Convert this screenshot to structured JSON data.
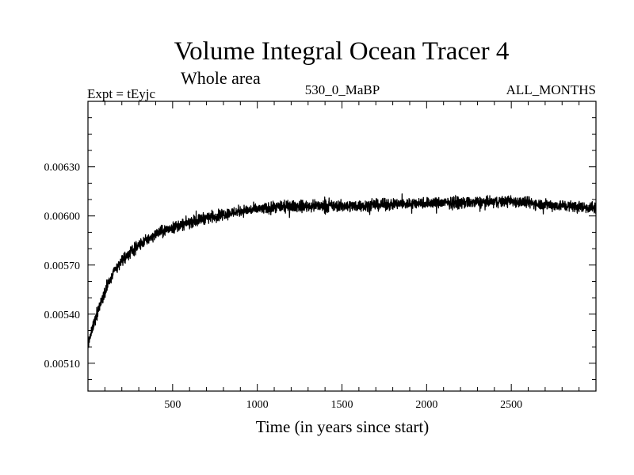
{
  "chart_data": {
    "type": "line",
    "title": "Volume Integral Ocean Tracer 4",
    "subtitle": "Whole area",
    "experiment_label": "Expt = tEyjc",
    "period_label": "530_0_MaBP",
    "months_label": "ALL_MONTHS",
    "xlabel": "Time (in years since start)",
    "ylabel": "",
    "xlim": [
      0,
      3000
    ],
    "ylim": [
      0.00493,
      0.0067
    ],
    "x_ticks": [
      500,
      1000,
      1500,
      2000,
      2500
    ],
    "x_tick_labels": [
      "500",
      "1000",
      "1500",
      "2000",
      "2500"
    ],
    "y_ticks": [
      0.0051,
      0.0054,
      0.0057,
      0.006,
      0.0063
    ],
    "y_tick_labels": [
      "0.00510",
      "0.00540",
      "0.00570",
      "0.00600",
      "0.00630"
    ],
    "grid": false,
    "series": [
      {
        "name": "Volume Integral Ocean Tracer 4",
        "color": "#000000",
        "trend": [
          {
            "x": 0,
            "y": 0.00521
          },
          {
            "x": 50,
            "y": 0.0054
          },
          {
            "x": 100,
            "y": 0.00554
          },
          {
            "x": 150,
            "y": 0.00565
          },
          {
            "x": 200,
            "y": 0.00573
          },
          {
            "x": 300,
            "y": 0.00582
          },
          {
            "x": 400,
            "y": 0.00589
          },
          {
            "x": 500,
            "y": 0.00593
          },
          {
            "x": 600,
            "y": 0.00596
          },
          {
            "x": 700,
            "y": 0.00599
          },
          {
            "x": 800,
            "y": 0.00601
          },
          {
            "x": 900,
            "y": 0.00603
          },
          {
            "x": 1000,
            "y": 0.00604
          },
          {
            "x": 1200,
            "y": 0.00606
          },
          {
            "x": 1500,
            "y": 0.00606
          },
          {
            "x": 1800,
            "y": 0.00607
          },
          {
            "x": 2000,
            "y": 0.00608
          },
          {
            "x": 2200,
            "y": 0.00608
          },
          {
            "x": 2500,
            "y": 0.00609
          },
          {
            "x": 2700,
            "y": 0.00607
          },
          {
            "x": 3000,
            "y": 0.00605
          }
        ],
        "noise_amplitude": 5e-05,
        "sample_step_years": 1
      }
    ]
  }
}
